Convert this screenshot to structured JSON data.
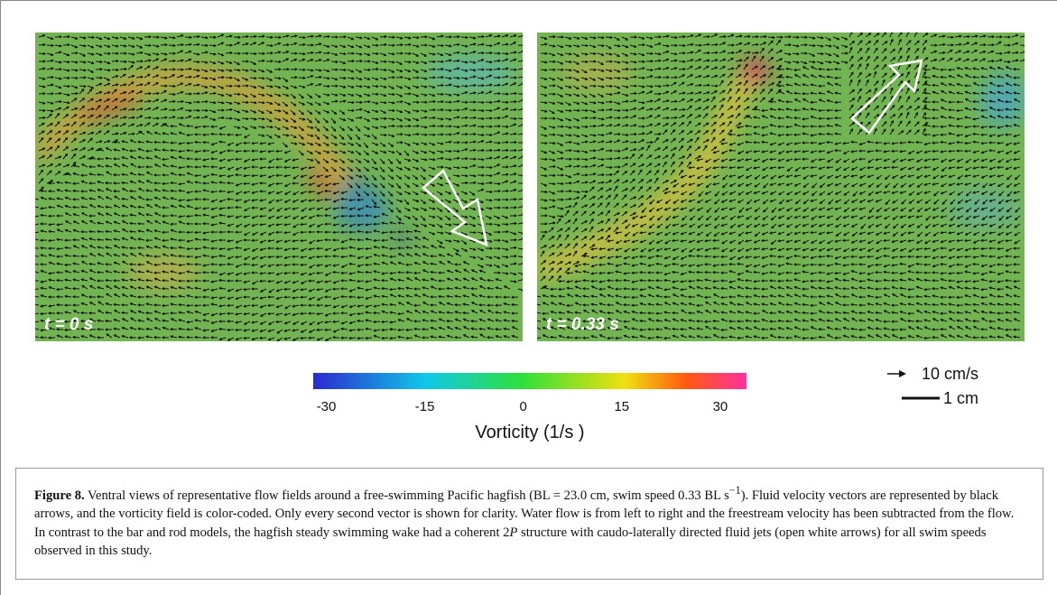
{
  "panels": [
    {
      "label": "t = 0 s"
    },
    {
      "label": "t = 0.33 s"
    }
  ],
  "colorbar": {
    "title": "Vorticity (1/s )",
    "clim": [
      -32,
      34
    ],
    "ticks": [
      -30,
      -15,
      0,
      15,
      30
    ]
  },
  "scale": {
    "velocity": "10 cm/s",
    "length": "1 cm"
  },
  "caption": {
    "label": "Figure 8.",
    "segments": [
      " Ventral views of representative flow fields around a free-swimming Pacific hagfish (BL = 23.0 cm, swim speed 0.33 BL s",
      "−1",
      "). Fluid velocity vectors are represented by black arrows, and the vorticity field is color-coded. Only every second vector is shown for clarity. Water flow is from left to right and the freestream velocity has been subtracted from the flow. In contrast to the bar and rod models, the hagfish steady swimming wake had a coherent 2",
      "P",
      " structure with caudo-laterally directed fluid jets (open white arrows) for all swim speeds observed in this study."
    ]
  }
}
